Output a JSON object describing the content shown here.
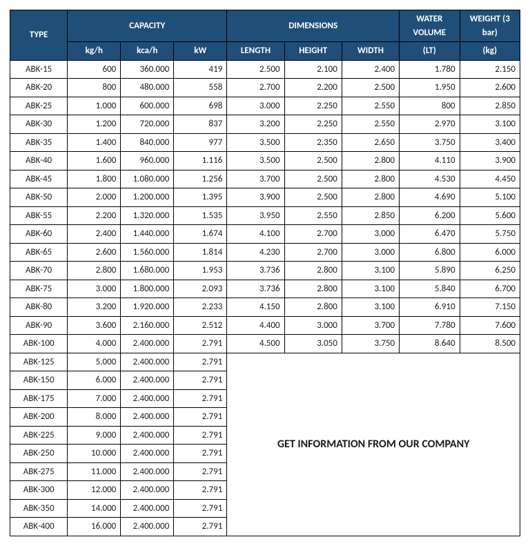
{
  "header": {
    "type": "TYPE",
    "capacity": "CAPACITY",
    "dimensions": "DIMENSIONS",
    "waterVolume": "WATER VOLUME",
    "weight": "WEIGHT (3 bar)",
    "kgh": "kg/h",
    "kcah": "kca/h",
    "kw": "kW",
    "length": "LENGTH",
    "height": "HEIGHT",
    "width": "WIDTH",
    "lt": "(LT)",
    "kg": "(kg)"
  },
  "colors": {
    "header_bg": "#1f4e79",
    "header_fg": "#ffffff",
    "border": "#000000",
    "cell_bg": "#ffffff",
    "cell_fg": "#1a1a1a"
  },
  "rows_full": [
    {
      "type": "ABK-15",
      "kgh": "600",
      "kcah": "360.000",
      "kw": "419",
      "len": "2.500",
      "hgt": "2.100",
      "wid": "2.400",
      "wv": "1.780",
      "wt": "2.150"
    },
    {
      "type": "ABK-20",
      "kgh": "800",
      "kcah": "480.000",
      "kw": "558",
      "len": "2.700",
      "hgt": "2.200",
      "wid": "2.500",
      "wv": "1.950",
      "wt": "2.600"
    },
    {
      "type": "ABK-25",
      "kgh": "1.000",
      "kcah": "600.000",
      "kw": "698",
      "len": "3.000",
      "hgt": "2.250",
      "wid": "2.550",
      "wv": "800",
      "wt": "2.850"
    },
    {
      "type": "ABK-30",
      "kgh": "1.200",
      "kcah": "720.000",
      "kw": "837",
      "len": "3.200",
      "hgt": "2.250",
      "wid": "2.550",
      "wv": "2.970",
      "wt": "3.100"
    },
    {
      "type": "ABK-35",
      "kgh": "1.400",
      "kcah": "840.000",
      "kw": "977",
      "len": "3.500",
      "hgt": "2.350",
      "wid": "2.650",
      "wv": "3.750",
      "wt": "3.400"
    },
    {
      "type": "ABK-40",
      "kgh": "1.600",
      "kcah": "960.000",
      "kw": "1.116",
      "len": "3.500",
      "hgt": "2.500",
      "wid": "2.800",
      "wv": "4.110",
      "wt": "3.900"
    },
    {
      "type": "ABK-45",
      "kgh": "1.800",
      "kcah": "1.080.000",
      "kw": "1.256",
      "len": "3.700",
      "hgt": "2.500",
      "wid": "2.800",
      "wv": "4.530",
      "wt": "4.450"
    },
    {
      "type": "ABK-50",
      "kgh": "2.000",
      "kcah": "1.200.000",
      "kw": "1.395",
      "len": "3.900",
      "hgt": "2.500",
      "wid": "2.800",
      "wv": "4.690",
      "wt": "5.100"
    },
    {
      "type": "ABK-55",
      "kgh": "2.200",
      "kcah": "1.320.000",
      "kw": "1.535",
      "len": "3.950",
      "hgt": "2.550",
      "wid": "2.850",
      "wv": "6.200",
      "wt": "5.600"
    },
    {
      "type": "ABK-60",
      "kgh": "2.400",
      "kcah": "1.440.000",
      "kw": "1.674",
      "len": "4.100",
      "hgt": "2.700",
      "wid": "3.000",
      "wv": "6.470",
      "wt": "5.750"
    },
    {
      "type": "ABK-65",
      "kgh": "2.600",
      "kcah": "1.560.000",
      "kw": "1.814",
      "len": "4.230",
      "hgt": "2.700",
      "wid": "3.000",
      "wv": "6.800",
      "wt": "6.000"
    },
    {
      "type": "ABK-70",
      "kgh": "2.800",
      "kcah": "1.680.000",
      "kw": "1.953",
      "len": "3.736",
      "hgt": "2.800",
      "wid": "3.100",
      "wv": "5.890",
      "wt": "6.250"
    },
    {
      "type": "ABK-75",
      "kgh": "3.000",
      "kcah": "1.800.000",
      "kw": "2.093",
      "len": "3.736",
      "hgt": "2.800",
      "wid": "3.100",
      "wv": "5.840",
      "wt": "6.700"
    },
    {
      "type": "ABK-80",
      "kgh": "3.200",
      "kcah": "1.920.000",
      "kw": "2.233",
      "len": "4.150",
      "hgt": "2.800",
      "wid": "3.100",
      "wv": "6.910",
      "wt": "7.150"
    },
    {
      "type": "ABK-90",
      "kgh": "3.600",
      "kcah": "2.160.000",
      "kw": "2.512",
      "len": "4.400",
      "hgt": "3.000",
      "wid": "3.700",
      "wv": "7.780",
      "wt": "7.600"
    },
    {
      "type": "ABK-100",
      "kgh": "4.000",
      "kcah": "2.400.000",
      "kw": "2.791",
      "len": "4.500",
      "hgt": "3.050",
      "wid": "3.750",
      "wv": "8.640",
      "wt": "8.500"
    }
  ],
  "rows_partial": [
    {
      "type": "ABK-125",
      "kgh": "5.000",
      "kcah": "2.400.000",
      "kw": "2.791"
    },
    {
      "type": "ABK-150",
      "kgh": "6.000",
      "kcah": "2.400.000",
      "kw": "2.791"
    },
    {
      "type": "ABK-175",
      "kgh": "7.000",
      "kcah": "2.400.000",
      "kw": "2.791"
    },
    {
      "type": "ABK-200",
      "kgh": "8.000",
      "kcah": "2.400.000",
      "kw": "2.791"
    },
    {
      "type": "ABK-225",
      "kgh": "9.000",
      "kcah": "2.400.000",
      "kw": "2.791"
    },
    {
      "type": "ABK-250",
      "kgh": "10.000",
      "kcah": "2.400.000",
      "kw": "2.791"
    },
    {
      "type": "ABK-275",
      "kgh": "11.000",
      "kcah": "2.400.000",
      "kw": "2.791"
    },
    {
      "type": "ABK-300",
      "kgh": "12.000",
      "kcah": "2.400.000",
      "kw": "2.791"
    },
    {
      "type": "ABK-350",
      "kgh": "14.000",
      "kcah": "2.400.000",
      "kw": "2.791"
    },
    {
      "type": "ABK-400",
      "kgh": "16.000",
      "kcah": "2.400.000",
      "kw": "2.791"
    }
  ],
  "info_text": "GET INFORMATION FROM OUR COMPANY"
}
